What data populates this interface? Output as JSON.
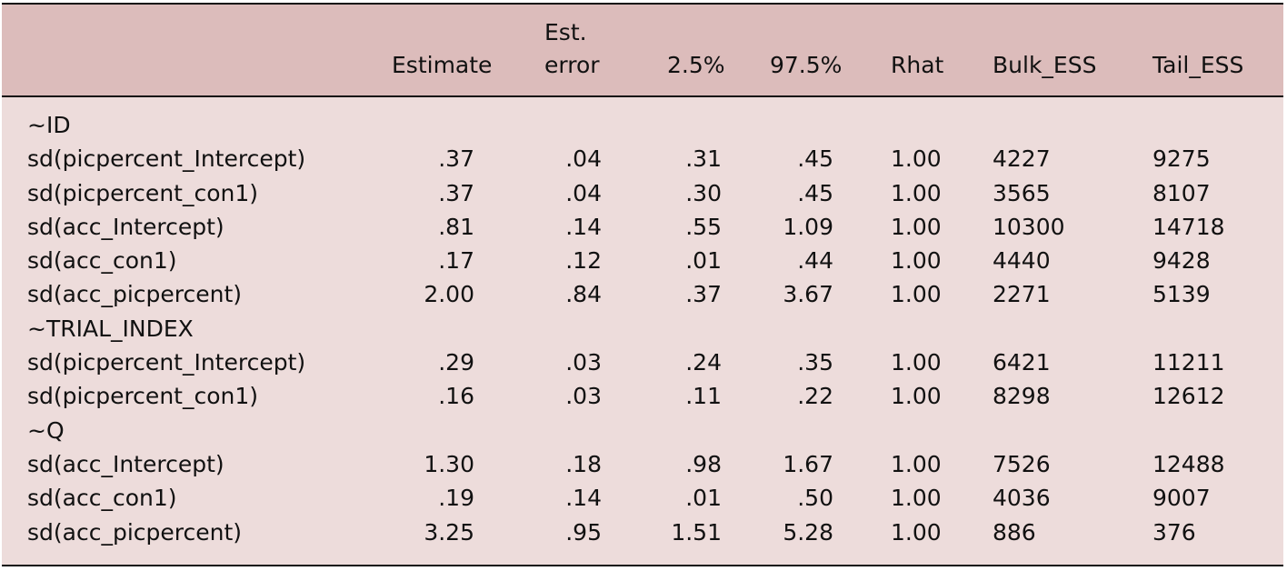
{
  "table": {
    "headers": {
      "label": "",
      "estimate": "Estimate",
      "est_error_line1": "Est.",
      "est_error_line2": "error",
      "ci_low": "2.5%",
      "ci_high": "97.5%",
      "rhat": "Rhat",
      "bulk_ess": "Bulk_ESS",
      "tail_ess": "Tail_ESS"
    },
    "rows": [
      {
        "type": "group",
        "label": "~ID"
      },
      {
        "type": "data",
        "label": "sd(picpercent_Intercept)",
        "estimate": ".37",
        "error": ".04",
        "lo": ".31",
        "hi": ".45",
        "rhat": "1.00",
        "bulk": "4227",
        "tail": "9275"
      },
      {
        "type": "data",
        "label": "sd(picpercent_con1)",
        "estimate": ".37",
        "error": ".04",
        "lo": ".30",
        "hi": ".45",
        "rhat": "1.00",
        "bulk": "3565",
        "tail": "8107"
      },
      {
        "type": "data",
        "label": "sd(acc_Intercept)",
        "estimate": ".81",
        "error": ".14",
        "lo": ".55",
        "hi": "1.09",
        "rhat": "1.00",
        "bulk": "10300",
        "tail": "14718"
      },
      {
        "type": "data",
        "label": "sd(acc_con1)",
        "estimate": ".17",
        "error": ".12",
        "lo": ".01",
        "hi": ".44",
        "rhat": "1.00",
        "bulk": "4440",
        "tail": "9428"
      },
      {
        "type": "data",
        "label": "sd(acc_picpercent)",
        "estimate": "2.00",
        "error": ".84",
        "lo": ".37",
        "hi": "3.67",
        "rhat": "1.00",
        "bulk": "2271",
        "tail": "5139"
      },
      {
        "type": "group",
        "label": "~TRIAL_INDEX"
      },
      {
        "type": "data",
        "label": "sd(picpercent_Intercept)",
        "estimate": ".29",
        "error": ".03",
        "lo": ".24",
        "hi": ".35",
        "rhat": "1.00",
        "bulk": "6421",
        "tail": "11211"
      },
      {
        "type": "data",
        "label": "sd(picpercent_con1)",
        "estimate": ".16",
        "error": ".03",
        "lo": ".11",
        "hi": ".22",
        "rhat": "1.00",
        "bulk": "8298",
        "tail": "12612"
      },
      {
        "type": "group",
        "label": "~Q"
      },
      {
        "type": "data",
        "label": "sd(acc_Intercept)",
        "estimate": "1.30",
        "error": ".18",
        "lo": ".98",
        "hi": "1.67",
        "rhat": "1.00",
        "bulk": "7526",
        "tail": "12488"
      },
      {
        "type": "data",
        "label": "sd(acc_con1)",
        "estimate": ".19",
        "error": ".14",
        "lo": ".01",
        "hi": ".50",
        "rhat": "1.00",
        "bulk": "4036",
        "tail": "9007"
      },
      {
        "type": "data",
        "label": "sd(acc_picpercent)",
        "estimate": "3.25",
        "error": ".95",
        "lo": "1.51",
        "hi": "5.28",
        "rhat": "1.00",
        "bulk": "886",
        "tail": "376"
      }
    ]
  },
  "colors": {
    "header_bg": "#dcbcbb",
    "body_bg": "#eddcdb",
    "rule": "#111111"
  }
}
